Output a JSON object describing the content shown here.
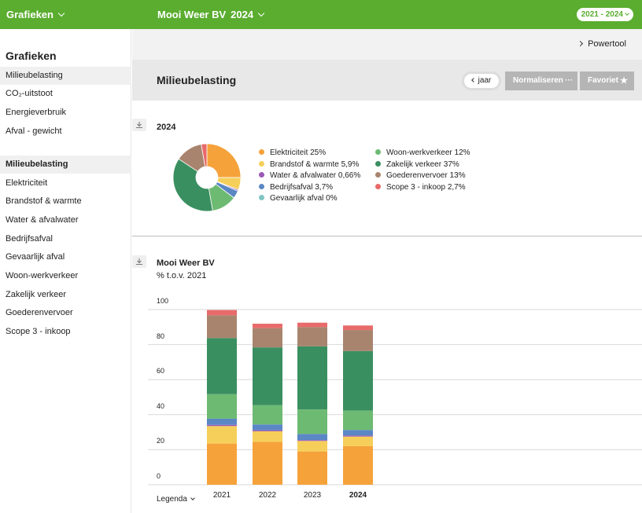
{
  "topbar": {
    "left_label": "Grafieken",
    "company": "Mooi Weer BV",
    "year": "2024",
    "range": "2021 - 2024"
  },
  "sidebar": {
    "heading": "Grafieken",
    "group1": [
      {
        "label": "Milieubelasting",
        "active": true
      },
      {
        "label": "CO₂-uitstoot"
      },
      {
        "label": "Energieverbruik"
      },
      {
        "label": "Afval - gewicht"
      }
    ],
    "group2": [
      {
        "label": "Milieubelasting",
        "active": true,
        "bold": true
      },
      {
        "label": "Elektriciteit"
      },
      {
        "label": "Brandstof & warmte"
      },
      {
        "label": "Water & afvalwater"
      },
      {
        "label": "Bedrijfsafval"
      },
      {
        "label": "Gevaarlijk afval"
      },
      {
        "label": "Woon-werkverkeer"
      },
      {
        "label": "Zakelijk verkeer"
      },
      {
        "label": "Goederenvervoer"
      },
      {
        "label": "Scope 3 - inkoop"
      }
    ]
  },
  "powertool": "Powertool",
  "page_title": "Milieubelasting",
  "buttons": {
    "jaar": "jaar",
    "normaliseren": "Normaliseren",
    "normaliseren_more": "···",
    "favoriet": "Favoriet",
    "favoriet_icon": "star-icon"
  },
  "colors": {
    "brand": "#5aad2f",
    "elektriciteit": "#f6a23a",
    "brandstof": "#f5cf5a",
    "water": "#9b59b6",
    "bedrijfsafval": "#5b87c5",
    "gevaarlijk": "#7fc6c3",
    "woonwerk": "#6dba72",
    "zakelijk": "#3a8f60",
    "goederen": "#a8846e",
    "scope3": "#e86a6a"
  },
  "chart_data": [
    {
      "type": "pie",
      "title": "2024",
      "categories": [
        "Elektriciteit",
        "Brandstof & warmte",
        "Water & afvalwater",
        "Bedrijfsafval",
        "Gevaarlijk afval",
        "Woon-werkverkeer",
        "Zakelijk verkeer",
        "Goederenvervoer",
        "Scope 3 - inkoop"
      ],
      "values": [
        25,
        5.9,
        0.66,
        3.7,
        0,
        12,
        37,
        13,
        2.7
      ],
      "legend_labels": [
        "Elektriciteit 25%",
        "Brandstof & warmte 5,9%",
        "Water & afvalwater 0,66%",
        "Bedrijfsafval 3,7%",
        "Gevaarlijk afval 0%",
        "Woon-werkverkeer 12%",
        "Zakelijk verkeer 37%",
        "Goederenvervoer 13%",
        "Scope 3 - inkoop 2,7%"
      ],
      "colors": [
        "#f6a23a",
        "#f5cf5a",
        "#9b59b6",
        "#5b87c5",
        "#7fc6c3",
        "#6dba72",
        "#3a8f60",
        "#a8846e",
        "#e86a6a"
      ],
      "legend_placement": "right"
    },
    {
      "type": "bar",
      "stacked": true,
      "title": "Mooi Weer BV",
      "subtitle": "% t.o.v. 2021",
      "categories": [
        "2021",
        "2022",
        "2023",
        "2024"
      ],
      "ylim": [
        0,
        100
      ],
      "yticks": [
        0,
        20,
        40,
        60,
        80,
        100
      ],
      "grid": true,
      "legend_toggle": "Legenda",
      "series": [
        {
          "name": "Elektriciteit",
          "color": "#f6a23a",
          "values": [
            23.5,
            24.5,
            19,
            22
          ]
        },
        {
          "name": "Brandstof & warmte",
          "color": "#f5cf5a",
          "values": [
            10,
            6,
            6,
            5.5
          ]
        },
        {
          "name": "Water & afvalwater",
          "color": "#9b59b6",
          "values": [
            0.7,
            0.6,
            0.5,
            0.6
          ]
        },
        {
          "name": "Bedrijfsafval",
          "color": "#5b87c5",
          "values": [
            3.5,
            3.3,
            3.5,
            3.2
          ]
        },
        {
          "name": "Gevaarlijk afval",
          "color": "#7fc6c3",
          "values": [
            0,
            0,
            0,
            0
          ]
        },
        {
          "name": "Woon-werkverkeer",
          "color": "#6dba72",
          "values": [
            14,
            11,
            14,
            11
          ]
        },
        {
          "name": "Zakelijk verkeer",
          "color": "#3a8f60",
          "values": [
            32,
            33,
            36,
            34
          ]
        },
        {
          "name": "Goederenvervoer",
          "color": "#a8846e",
          "values": [
            13,
            11,
            11,
            12
          ]
        },
        {
          "name": "Scope 3 - inkoop",
          "color": "#e86a6a",
          "values": [
            3,
            2.5,
            2.5,
            2.6
          ]
        }
      ]
    }
  ]
}
